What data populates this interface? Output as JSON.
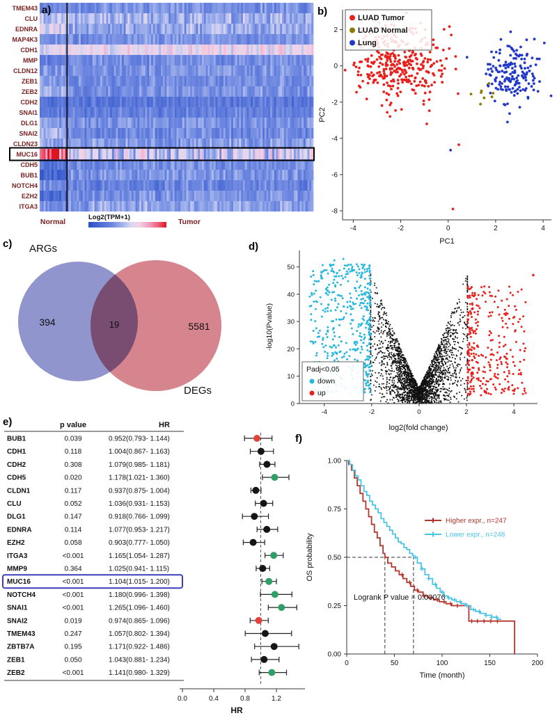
{
  "figure": {
    "panel_labels": {
      "a": "a)",
      "b": "b)",
      "c": "c)",
      "d": "d)",
      "e": "e)",
      "f": "f)"
    }
  },
  "chart_data": [
    {
      "id": "a",
      "type": "heatmap",
      "rows": [
        {
          "gene": "TMEM43",
          "normal": 0.3,
          "tumor": 0.33,
          "noise": 0.1
        },
        {
          "gene": "CLU",
          "normal": 0.45,
          "tumor": 0.42,
          "noise": 0.14
        },
        {
          "gene": "EDNRA",
          "normal": 0.55,
          "tumor": 0.4,
          "noise": 0.13
        },
        {
          "gene": "MAP4K3",
          "normal": 0.3,
          "tumor": 0.33,
          "noise": 0.09
        },
        {
          "gene": "CDH1",
          "normal": 0.55,
          "tumor": 0.6,
          "noise": 0.1
        },
        {
          "gene": "MMP",
          "normal": 0.25,
          "tumor": 0.31,
          "noise": 0.09
        },
        {
          "gene": "CLDN12",
          "normal": 0.33,
          "tumor": 0.33,
          "noise": 0.09
        },
        {
          "gene": "ZEB1",
          "normal": 0.36,
          "tumor": 0.31,
          "noise": 0.09
        },
        {
          "gene": "ZEB2",
          "normal": 0.42,
          "tumor": 0.33,
          "noise": 0.1
        },
        {
          "gene": "CDH2",
          "normal": 0.18,
          "tumor": 0.22,
          "noise": 0.08
        },
        {
          "gene": "SNAI1",
          "normal": 0.25,
          "tumor": 0.26,
          "noise": 0.09
        },
        {
          "gene": "DLG1",
          "normal": 0.36,
          "tumor": 0.34,
          "noise": 0.09
        },
        {
          "gene": "SNAI2",
          "normal": 0.42,
          "tumor": 0.3,
          "noise": 0.1
        },
        {
          "gene": "CLDN23",
          "normal": 0.38,
          "tumor": 0.36,
          "noise": 0.11
        },
        {
          "gene": "MUC16",
          "normal": 0.88,
          "tumor": 0.5,
          "noise": 0.22
        },
        {
          "gene": "CDH5",
          "normal": 0.2,
          "tumor": 0.32,
          "noise": 0.1
        },
        {
          "gene": "BUB1",
          "normal": 0.12,
          "tumor": 0.34,
          "noise": 0.1
        },
        {
          "gene": "NOTCH4",
          "normal": 0.3,
          "tumor": 0.27,
          "noise": 0.1
        },
        {
          "gene": "EZH2",
          "normal": 0.14,
          "tumor": 0.33,
          "noise": 0.1
        },
        {
          "gene": "ITGA3",
          "normal": 0.3,
          "tumor": 0.38,
          "noise": 0.11
        }
      ],
      "normal_cols": 14,
      "total_cols": 140,
      "group_labels": {
        "normal": "Normal",
        "tumor": "Tumor"
      },
      "colorbar_label": "Log2(TPM+1)",
      "highlight_gene": "MUC16",
      "label_color": "#7b2020",
      "colormap": [
        [
          0,
          "#2b50c8"
        ],
        [
          0.3,
          "#6d87e0"
        ],
        [
          0.45,
          "#a8b8ee"
        ],
        [
          0.55,
          "#dcd6f2"
        ],
        [
          0.65,
          "#f4d3e4"
        ],
        [
          0.78,
          "#f39ec4"
        ],
        [
          0.9,
          "#ee5a74"
        ],
        [
          1,
          "#e01420"
        ]
      ]
    },
    {
      "id": "b",
      "type": "scatter",
      "xlabel": "PC1",
      "ylabel": "PC2",
      "xlim": [
        -4.45,
        4.35
      ],
      "ylim": [
        -8.5,
        3.1
      ],
      "xticks": [
        -4,
        -2,
        0,
        2,
        4
      ],
      "yticks": [
        2,
        0,
        -2,
        -4,
        -6,
        -8
      ],
      "legend": [
        {
          "label": "LUAD Tumor",
          "color": "#e8211d"
        },
        {
          "label": "LUAD Normal",
          "color": "#8a7a00"
        },
        {
          "label": "Lung",
          "color": "#2238c8"
        }
      ],
      "clusters": [
        {
          "name": "LUAD Tumor",
          "color": "#e8211d",
          "cx": -2.1,
          "cy": 0.15,
          "sx": 1.0,
          "sy": 1.05,
          "n": 340
        },
        {
          "name": "Lung",
          "color": "#2238c8",
          "cx": 2.6,
          "cy": -0.35,
          "sx": 0.62,
          "sy": 0.85,
          "n": 170
        },
        {
          "name": "LUAD Normal",
          "color": "#8a7a00",
          "cx": 1.55,
          "cy": -1.35,
          "sx": 0.35,
          "sy": 0.45,
          "n": 8
        }
      ],
      "outliers": [
        {
          "x": -0.9,
          "y": -3.2,
          "color": "#e8211d"
        },
        {
          "x": 0.45,
          "y": -4.35,
          "color": "#e8211d"
        },
        {
          "x": 0.1,
          "y": -4.65,
          "color": "#2238c8"
        },
        {
          "x": 2.5,
          "y": -3.1,
          "color": "#2238c8"
        },
        {
          "x": 0.2,
          "y": -7.9,
          "color": "#e8211d"
        }
      ]
    },
    {
      "id": "c",
      "type": "venn",
      "left": {
        "label": "ARGs",
        "only_count": "394",
        "color": "#7d82c4"
      },
      "right": {
        "label": "DEGs",
        "only_count": "5581",
        "color": "#cf6f79"
      },
      "intersection_count": "19"
    },
    {
      "id": "d",
      "type": "volcano",
      "xlabel": "log2(fold change)",
      "ylabel": "-log10(Pvalue)",
      "xlim": [
        -5.05,
        5.0
      ],
      "ylim": [
        0,
        56
      ],
      "xticks": [
        -4,
        -2,
        0,
        2,
        4
      ],
      "yticks": [
        0,
        10,
        20,
        30,
        40,
        50
      ],
      "legend_title": "Padj<0.05",
      "legend": [
        {
          "label": "down",
          "color": "#27b7dd"
        },
        {
          "label": "up",
          "color": "#e8211d"
        }
      ],
      "fc_threshold": 2,
      "point_counts": {
        "nonsig": 2600,
        "down": 430,
        "up": 300
      },
      "colors": {
        "nonsig": "#111111",
        "down": "#27b7dd",
        "up": "#e8211d"
      }
    },
    {
      "id": "e",
      "type": "forest",
      "col_headers": {
        "p": "p value",
        "hr": "HR"
      },
      "axis_label": "HR",
      "axis_ticks": [
        "0.0",
        "0.4",
        "0.8",
        "1.2"
      ],
      "ref_line": 1.0,
      "highlight_gene": "MUC16",
      "dot_colors": {
        "red": "#e04438",
        "green": "#2f9e68",
        "black": "#151515"
      },
      "rows": [
        {
          "gene": "BUB1",
          "p": "0.039",
          "ci": "0.952(0.793- 1.144)",
          "hr": 0.952,
          "lo": 0.793,
          "hi": 1.144,
          "color": "red"
        },
        {
          "gene": "CDH1",
          "p": "0.118",
          "ci": "1.004(0.867- 1.163)",
          "hr": 1.004,
          "lo": 0.867,
          "hi": 1.163,
          "color": "black"
        },
        {
          "gene": "CDH2",
          "p": "0.308",
          "ci": "1.079(0.985- 1.181)",
          "hr": 1.079,
          "lo": 0.985,
          "hi": 1.181,
          "color": "black"
        },
        {
          "gene": "CDH5",
          "p": "0.020",
          "ci": "1.178(1.021- 1.360)",
          "hr": 1.178,
          "lo": 1.021,
          "hi": 1.36,
          "color": "green"
        },
        {
          "gene": "CLDN1",
          "p": "0.117",
          "ci": "0.937(0.875- 1.004)",
          "hr": 0.937,
          "lo": 0.875,
          "hi": 1.004,
          "color": "black"
        },
        {
          "gene": "CLU",
          "p": "0.052",
          "ci": "1.036(0.931- 1.153)",
          "hr": 1.036,
          "lo": 0.931,
          "hi": 1.153,
          "color": "black"
        },
        {
          "gene": "DLG1",
          "p": "0.147",
          "ci": "0.918(0.766- 1.099)",
          "hr": 0.918,
          "lo": 0.766,
          "hi": 1.099,
          "color": "black"
        },
        {
          "gene": "EDNRA",
          "p": "0.114",
          "ci": "1.077(0.953- 1.217)",
          "hr": 1.077,
          "lo": 0.953,
          "hi": 1.217,
          "color": "black"
        },
        {
          "gene": "EZH2",
          "p": "0.058",
          "ci": "0.903(0.777- 1.050)",
          "hr": 0.903,
          "lo": 0.777,
          "hi": 1.05,
          "color": "black"
        },
        {
          "gene": "ITGA3",
          "p": "<0.001",
          "ci": "1.165(1.054- 1.287)",
          "hr": 1.165,
          "lo": 1.054,
          "hi": 1.287,
          "color": "green"
        },
        {
          "gene": "MMP9",
          "p": "0.364",
          "ci": "1.025(0.941- 1.115)",
          "hr": 1.025,
          "lo": 0.941,
          "hi": 1.115,
          "color": "black"
        },
        {
          "gene": "MUC16",
          "p": "<0.001",
          "ci": "1.104(1.015- 1.200)",
          "hr": 1.104,
          "lo": 1.015,
          "hi": 1.2,
          "color": "green"
        },
        {
          "gene": "NOTCH4",
          "p": "<0.001",
          "ci": "1.180(0.996- 1.398)",
          "hr": 1.18,
          "lo": 0.996,
          "hi": 1.398,
          "color": "green"
        },
        {
          "gene": "SNAI1",
          "p": "<0.001",
          "ci": "1.265(1.096- 1.460)",
          "hr": 1.265,
          "lo": 1.096,
          "hi": 1.46,
          "color": "green"
        },
        {
          "gene": "SNAI2",
          "p": "0.019",
          "ci": "0.974(0.865- 1.096)",
          "hr": 0.974,
          "lo": 0.865,
          "hi": 1.096,
          "color": "red"
        },
        {
          "gene": "TMEM43",
          "p": "0.247",
          "ci": "1.057(0.802- 1.394)",
          "hr": 1.057,
          "lo": 0.802,
          "hi": 1.394,
          "color": "black"
        },
        {
          "gene": "ZBTB7A",
          "p": "0.195",
          "ci": "1.171(0.922- 1.486)",
          "hr": 1.171,
          "lo": 0.922,
          "hi": 1.486,
          "color": "black"
        },
        {
          "gene": "ZEB1",
          "p": "0.050",
          "ci": "1.043(0.881- 1.234)",
          "hr": 1.043,
          "lo": 0.881,
          "hi": 1.234,
          "color": "black"
        },
        {
          "gene": "ZEB2",
          "p": "<0.001",
          "ci": "1.141(0.980- 1.329)",
          "hr": 1.141,
          "lo": 0.98,
          "hi": 1.329,
          "color": "green"
        }
      ]
    },
    {
      "id": "f",
      "type": "km_survival",
      "xlabel": "Time (month)",
      "ylabel": "OS probability",
      "xlim": [
        0,
        205
      ],
      "xticks": [
        0,
        50,
        100,
        150,
        200
      ],
      "yticks": [
        1.0,
        0.75,
        0.5,
        0.25,
        0.0
      ],
      "ytick_labels": [
        "1.00",
        "0.75",
        "0.50",
        "0.25",
        "0.00"
      ],
      "annotation": "Logrank P value = 0.00076",
      "median_guides": {
        "surv": 0.5,
        "t_high": 40,
        "t_low": 70
      },
      "series": [
        {
          "name": "Higher expr., n=247",
          "color": "#b5342c",
          "steps": [
            [
              0,
              1.0
            ],
            [
              2,
              0.98
            ],
            [
              5,
              0.95
            ],
            [
              8,
              0.91
            ],
            [
              11,
              0.87
            ],
            [
              14,
              0.83
            ],
            [
              17,
              0.79
            ],
            [
              20,
              0.75
            ],
            [
              23,
              0.71
            ],
            [
              26,
              0.67
            ],
            [
              29,
              0.63
            ],
            [
              32,
              0.6
            ],
            [
              35,
              0.56
            ],
            [
              38,
              0.52
            ],
            [
              40,
              0.5
            ],
            [
              43,
              0.47
            ],
            [
              47,
              0.45
            ],
            [
              51,
              0.43
            ],
            [
              55,
              0.41
            ],
            [
              59,
              0.39
            ],
            [
              63,
              0.37
            ],
            [
              67,
              0.35
            ],
            [
              71,
              0.33
            ],
            [
              75,
              0.32
            ],
            [
              80,
              0.3
            ],
            [
              85,
              0.29
            ],
            [
              91,
              0.28
            ],
            [
              97,
              0.27
            ],
            [
              104,
              0.26
            ],
            [
              110,
              0.25
            ],
            [
              128,
              0.17
            ],
            [
              176,
              0.0
            ]
          ],
          "censor_times": [
            58,
            66,
            74,
            81,
            88,
            95,
            102,
            109,
            116,
            131,
            137,
            144,
            151,
            158
          ]
        },
        {
          "name": "Lower expr., n=248",
          "color": "#49c3e6",
          "steps": [
            [
              0,
              1.0
            ],
            [
              3,
              0.98
            ],
            [
              6,
              0.95
            ],
            [
              9,
              0.92
            ],
            [
              12,
              0.9
            ],
            [
              15,
              0.87
            ],
            [
              18,
              0.84
            ],
            [
              21,
              0.82
            ],
            [
              24,
              0.79
            ],
            [
              27,
              0.77
            ],
            [
              30,
              0.75
            ],
            [
              33,
              0.73
            ],
            [
              36,
              0.7
            ],
            [
              39,
              0.68
            ],
            [
              42,
              0.66
            ],
            [
              45,
              0.64
            ],
            [
              48,
              0.62
            ],
            [
              51,
              0.6
            ],
            [
              54,
              0.58
            ],
            [
              57,
              0.57
            ],
            [
              60,
              0.55
            ],
            [
              63,
              0.54
            ],
            [
              66,
              0.52
            ],
            [
              69,
              0.51
            ],
            [
              70,
              0.5
            ],
            [
              74,
              0.47
            ],
            [
              78,
              0.44
            ],
            [
              82,
              0.41
            ],
            [
              86,
              0.39
            ],
            [
              90,
              0.36
            ],
            [
              94,
              0.34
            ],
            [
              98,
              0.32
            ],
            [
              102,
              0.3
            ],
            [
              106,
              0.29
            ],
            [
              110,
              0.28
            ],
            [
              115,
              0.27
            ],
            [
              120,
              0.26
            ],
            [
              125,
              0.25
            ],
            [
              130,
              0.23
            ],
            [
              135,
              0.22
            ],
            [
              140,
              0.21
            ],
            [
              146,
              0.2
            ],
            [
              152,
              0.19
            ],
            [
              158,
              0.18
            ],
            [
              162,
              0.18
            ]
          ],
          "censor_times": [
            72,
            79,
            86,
            93,
            100,
            107,
            113,
            119,
            126,
            133,
            139,
            146,
            152,
            157
          ]
        }
      ]
    }
  ]
}
